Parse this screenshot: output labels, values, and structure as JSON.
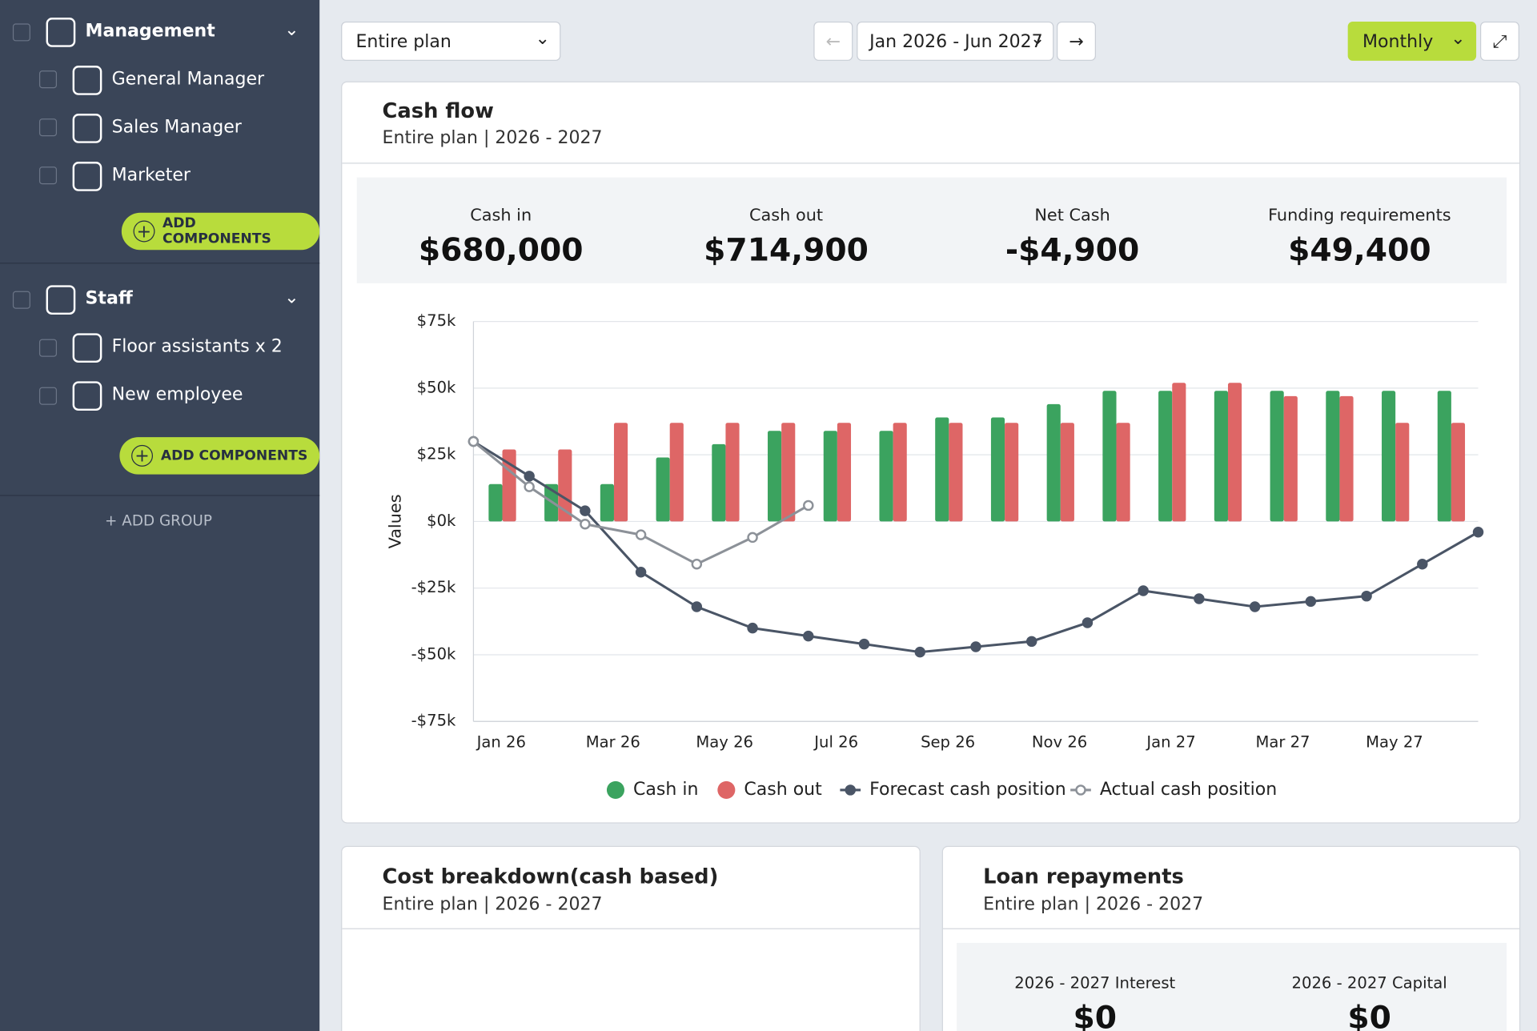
{
  "sidebar": {
    "groups": [
      {
        "name": "Management",
        "items": [
          "General Manager",
          "Sales Manager",
          "Marketer"
        ],
        "button": "ADD COMPONENTS"
      },
      {
        "name": "Staff",
        "items": [
          "Floor assistants x 2",
          "New employee"
        ],
        "button": "ADD COMPONENTS"
      }
    ],
    "add_group": "ADD GROUP"
  },
  "toolbar": {
    "scope": "Entire plan",
    "range": "Jan 2026 - Jun 2027",
    "period": "Monthly"
  },
  "cash_flow": {
    "title": "Cash flow",
    "subtitle": "Entire plan | 2026 - 2027",
    "kpis": [
      {
        "label": "Cash in",
        "value": "$680,000"
      },
      {
        "label": "Cash out",
        "value": "$714,900"
      },
      {
        "label": "Net Cash",
        "value": "-$4,900"
      },
      {
        "label": "Funding requirements",
        "value": "$49,400"
      }
    ]
  },
  "chart_data": {
    "type": "bar",
    "y_label": "Values",
    "categories": [
      "Jan 26",
      null,
      "Mar 26",
      null,
      "May 26",
      null,
      "Jul 26",
      null,
      "Sep 26",
      null,
      "Nov 26",
      null,
      "Jan 27",
      null,
      "Mar 27",
      null,
      "May 27",
      null,
      null
    ],
    "series": [
      {
        "name": "Cash in",
        "type": "bar",
        "color": "#3ba35f",
        "values": [
          14000,
          14000,
          14000,
          24000,
          29000,
          34000,
          34000,
          34000,
          39000,
          39000,
          44000,
          49000,
          49000,
          49000,
          49000,
          49000,
          49000,
          49000,
          null
        ]
      },
      {
        "name": "Cash out",
        "type": "bar",
        "color": "#de6666",
        "values": [
          27000,
          27000,
          37000,
          37000,
          37000,
          37000,
          37000,
          37000,
          37000,
          37000,
          37000,
          37000,
          52000,
          52000,
          47000,
          47000,
          37000,
          37000,
          null
        ]
      },
      {
        "name": "Forecast cash position",
        "type": "line",
        "color": "#4a5566",
        "values": [
          30000,
          17000,
          4000,
          -19000,
          -32000,
          -40000,
          -43000,
          -46000,
          -49000,
          -47000,
          -45000,
          -38000,
          -26000,
          -29000,
          -32000,
          -30000,
          -28000,
          -16000,
          -4000
        ]
      },
      {
        "name": "Actual cash position",
        "type": "line",
        "color": "#8c9198",
        "hollow": true,
        "values": [
          30000,
          13000,
          -1000,
          -5000,
          -16000,
          -6000,
          6000,
          null,
          null,
          null,
          null,
          null,
          null,
          null,
          null,
          null,
          null,
          null,
          null
        ]
      }
    ],
    "ylim": [
      -75000,
      75000
    ],
    "yticks": [
      {
        "value": -75000,
        "label": "-$75k"
      },
      {
        "value": -50000,
        "label": "-$50k"
      },
      {
        "value": -25000,
        "label": "-$25k"
      },
      {
        "value": 0,
        "label": "$0k"
      },
      {
        "value": 25000,
        "label": "$25k"
      },
      {
        "value": 50000,
        "label": "$50k"
      },
      {
        "value": 75000,
        "label": "$75k"
      }
    ],
    "grid": true,
    "legend": "bottom"
  },
  "cost_breakdown": {
    "title": "Cost breakdown(cash based)",
    "subtitle": "Entire plan | 2026 - 2027"
  },
  "loan_repayments": {
    "title": "Loan repayments",
    "subtitle": "Entire plan | 2026 - 2027",
    "kpis": [
      {
        "label": "2026 - 2027 Interest",
        "value": "$0"
      },
      {
        "label": "2026 - 2027 Capital",
        "value": "$0"
      }
    ]
  }
}
